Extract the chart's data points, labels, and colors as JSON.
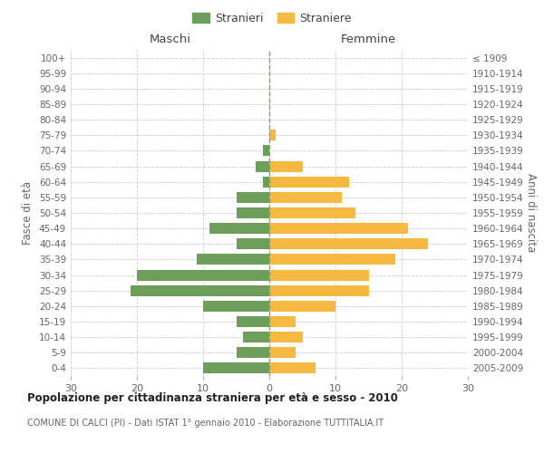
{
  "age_groups": [
    "0-4",
    "5-9",
    "10-14",
    "15-19",
    "20-24",
    "25-29",
    "30-34",
    "35-39",
    "40-44",
    "45-49",
    "50-54",
    "55-59",
    "60-64",
    "65-69",
    "70-74",
    "75-79",
    "80-84",
    "85-89",
    "90-94",
    "95-99",
    "100+"
  ],
  "birth_years": [
    "2005-2009",
    "2000-2004",
    "1995-1999",
    "1990-1994",
    "1985-1989",
    "1980-1984",
    "1975-1979",
    "1970-1974",
    "1965-1969",
    "1960-1964",
    "1955-1959",
    "1950-1954",
    "1945-1949",
    "1940-1944",
    "1935-1939",
    "1930-1934",
    "1925-1929",
    "1920-1924",
    "1915-1919",
    "1910-1914",
    "≤ 1909"
  ],
  "males": [
    10,
    5,
    4,
    5,
    10,
    21,
    20,
    11,
    5,
    9,
    5,
    5,
    1,
    2,
    1,
    0,
    0,
    0,
    0,
    0,
    0
  ],
  "females": [
    7,
    4,
    5,
    4,
    10,
    15,
    15,
    19,
    24,
    21,
    13,
    11,
    12,
    5,
    0,
    1,
    0,
    0,
    0,
    0,
    0
  ],
  "male_color": "#6d9e5a",
  "female_color": "#f5b942",
  "grid_color": "#cccccc",
  "center_line_color": "#999966",
  "title": "Popolazione per cittadinanza straniera per età e sesso - 2010",
  "subtitle": "COMUNE DI CALCI (PI) - Dati ISTAT 1° gennaio 2010 - Elaborazione TUTTITALIA.IT",
  "ylabel_left": "Fasce di età",
  "ylabel_right": "Anni di nascita",
  "xlabel_left": "Maschi",
  "xlabel_right": "Femmine",
  "legend_male": "Stranieri",
  "legend_female": "Straniere",
  "xlim": 30,
  "background_color": "#ffffff",
  "bar_height": 0.7
}
